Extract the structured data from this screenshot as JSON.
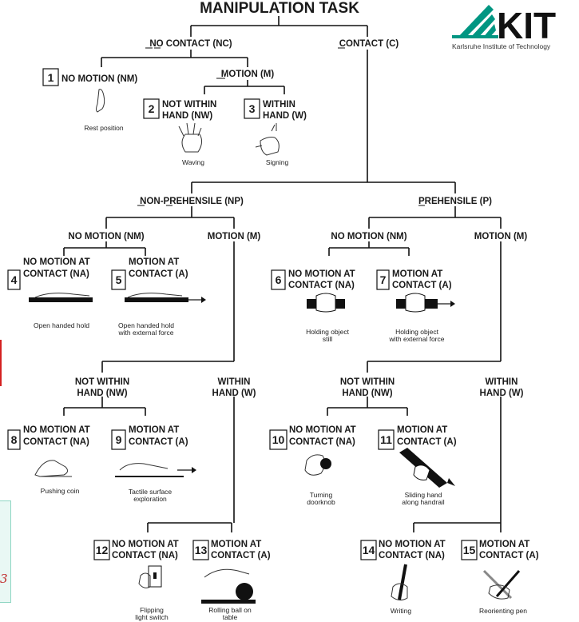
{
  "title": "MANIPULATION TASK",
  "logo": {
    "wordmark": "KIT",
    "subtitle": "Karlsruhe Institute of Technology",
    "accent_color": "#009682"
  },
  "level1": {
    "nc": "NO CONTACT (NC)",
    "c": "CONTACT (C)"
  },
  "nc_branch": {
    "motion": "MOTION (M)",
    "node1": {
      "number": "1",
      "label": "NO MOTION (NM)",
      "caption": "Rest position"
    },
    "node2": {
      "number": "2",
      "line1": "NOT WITHIN",
      "line2": "HAND (NW)",
      "caption": "Waving"
    },
    "node3": {
      "number": "3",
      "line1": "WITHIN",
      "line2": "HAND (W)",
      "caption": "Signing"
    }
  },
  "np": {
    "header": "NON-PREHENSILE (NP)",
    "no_motion": "NO MOTION (NM)",
    "motion": "MOTION (M)",
    "not_within": {
      "line1": "NOT WITHIN",
      "line2": "HAND (NW)"
    },
    "within": {
      "line1": "WITHIN",
      "line2": "HAND (W)"
    }
  },
  "p": {
    "header": "PREHENSILE (P)",
    "no_motion": "NO MOTION (NM)",
    "motion": "MOTION (M)",
    "not_within": {
      "line1": "NOT WITHIN",
      "line2": "HAND (NW)"
    },
    "within": {
      "line1": "WITHIN",
      "line2": "HAND (W)"
    }
  },
  "leaves": {
    "n4": {
      "number": "4",
      "line1": "NO MOTION AT",
      "line2": "CONTACT (NA)",
      "caption1": "Open handed hold",
      "caption2": ""
    },
    "n5": {
      "number": "5",
      "line1": "MOTION AT",
      "line2": "CONTACT (A)",
      "caption1": "Open handed hold",
      "caption2": "with external force"
    },
    "n6": {
      "number": "6",
      "line1": "NO MOTION AT",
      "line2": "CONTACT (NA)",
      "caption1": "Holding object",
      "caption2": "still"
    },
    "n7": {
      "number": "7",
      "line1": "MOTION AT",
      "line2": "CONTACT (A)",
      "caption1": "Holding object",
      "caption2": "with external force"
    },
    "n8": {
      "number": "8",
      "line1": "NO MOTION AT",
      "line2": "CONTACT (NA)",
      "caption1": "Pushing coin",
      "caption2": ""
    },
    "n9": {
      "number": "9",
      "line1": "MOTION AT",
      "line2": "CONTACT (A)",
      "caption1": "Tactile surface",
      "caption2": "exploration"
    },
    "n10": {
      "number": "10",
      "line1": "NO MOTION AT",
      "line2": "CONTACT (NA)",
      "caption1": "Turning",
      "caption2": "doorknob"
    },
    "n11": {
      "number": "11",
      "line1": "MOTION AT",
      "line2": "CONTACT (A)",
      "caption1": "Sliding hand",
      "caption2": "along handrail"
    },
    "n12": {
      "number": "12",
      "line1": "NO MOTION AT",
      "line2": "CONTACT (NA)",
      "caption1": "Flipping",
      "caption2": "light switch"
    },
    "n13": {
      "number": "13",
      "line1": "MOTION AT",
      "line2": "CONTACT (A)",
      "caption1": "Rolling ball on",
      "caption2": "table"
    },
    "n14": {
      "number": "14",
      "line1": "NO MOTION AT",
      "line2": "CONTACT (NA)",
      "caption1": "Writing",
      "caption2": ""
    },
    "n15": {
      "number": "15",
      "line1": "MOTION AT",
      "line2": "CONTACT (A)",
      "caption1": "Reorienting pen",
      "caption2": ""
    }
  },
  "side_fragment": {
    "glyph": "3"
  }
}
